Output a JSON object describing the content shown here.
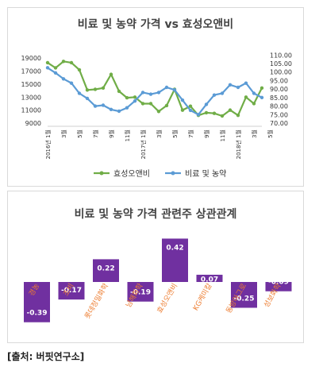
{
  "source_note": "[출처: 버핏연구소]",
  "chart_data": [
    {
      "type": "line",
      "title": "비료 및 농약 가격 vs 효성오앤비",
      "x_tick_labels": [
        "2016년 1월",
        "3월",
        "5월",
        "7월",
        "9월",
        "11월",
        "2017년 1월",
        "3월",
        "5월",
        "7월",
        "9월",
        "11월",
        "2018년 1월",
        "3월",
        "5월"
      ],
      "y_left": {
        "ticks": [
          "9000",
          "11000",
          "13000",
          "15000",
          "17000",
          "19000"
        ],
        "range": [
          9000,
          20000
        ]
      },
      "y_right": {
        "ticks": [
          "70.00",
          "75.00",
          "80.00",
          "85.00",
          "90.00",
          "95.00",
          "100.00",
          "105.00",
          "110.00"
        ],
        "range": [
          70,
          112
        ]
      },
      "series": [
        {
          "name": "효성오앤비",
          "axis": "left",
          "color": "#70ad47",
          "values": [
            18300,
            17500,
            18500,
            18300,
            17200,
            14100,
            14200,
            14400,
            16500,
            13900,
            12900,
            13000,
            12000,
            12000,
            10800,
            11700,
            14200,
            11000,
            11600,
            10200,
            10600,
            10500,
            10100,
            11000,
            10200,
            13000,
            12000,
            14400
          ]
        },
        {
          "name": "비료 및 농약",
          "axis": "right",
          "color": "#5b9bd5",
          "values": [
            102.5,
            99.5,
            96.0,
            93.5,
            87.5,
            84.5,
            80.0,
            80.5,
            78.0,
            77.0,
            79.0,
            83.0,
            88.0,
            87.0,
            88.0,
            91.0,
            89.5,
            83.5,
            77.5,
            75.0,
            81.0,
            86.5,
            87.5,
            92.5,
            91.0,
            93.5,
            87.5,
            85.0
          ]
        }
      ]
    },
    {
      "type": "bar",
      "title": "비료 및 농약 가격 관련주 상관관계",
      "categories": [
        "경농",
        "조비",
        "롯데정밀화학",
        "남해화학",
        "효성오앤비",
        "KG케미칼",
        "동방아그로",
        "성보화학"
      ],
      "values": [
        -0.39,
        -0.17,
        0.22,
        -0.19,
        0.42,
        0.07,
        -0.25,
        -0.09
      ],
      "value_labels": [
        "-0.39",
        "-0.17",
        "0.22",
        "-0.19",
        "0.42",
        "0.07",
        "-0.25",
        "-0.09"
      ],
      "color": "#7030a0",
      "label_color": "#ed7d31"
    }
  ]
}
